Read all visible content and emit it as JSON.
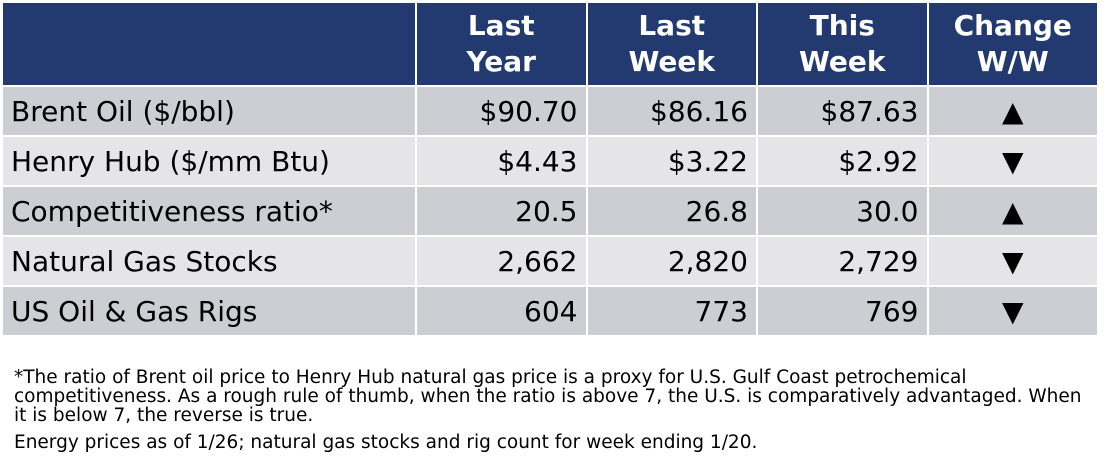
{
  "table": {
    "header": [
      "Last\nYear",
      "Last\nWeek",
      "This\nWeek",
      "Change\nW/W"
    ],
    "rows": [
      [
        "Brent Oil ($/bbl)",
        "$90.70",
        "$86.16",
        "$87.63",
        "▲"
      ],
      [
        "Henry Hub ($/mm Btu)",
        "$4.43",
        "$3.22",
        "$2.92",
        "▼"
      ],
      [
        "Competitiveness ratio*",
        "20.5",
        "26.8",
        "30.0",
        "▲"
      ],
      [
        "Natural Gas Stocks",
        "2,662",
        "2,820",
        "2,729",
        "▼"
      ],
      [
        "US Oil & Gas Rigs",
        "604",
        "773",
        "769",
        "▼"
      ]
    ]
  },
  "notes": [
    "*The ratio of Brent oil price to Henry Hub natural gas price is a proxy for U.S. Gulf Coast petrochemical competitiveness. As a rough rule of thumb, when the ratio is above 7, the U.S. is comparatively advantaged. When it is below 7, the reverse is true.",
    "Energy prices as of 1/26; natural gas stocks and rig count for week ending 1/20."
  ]
}
